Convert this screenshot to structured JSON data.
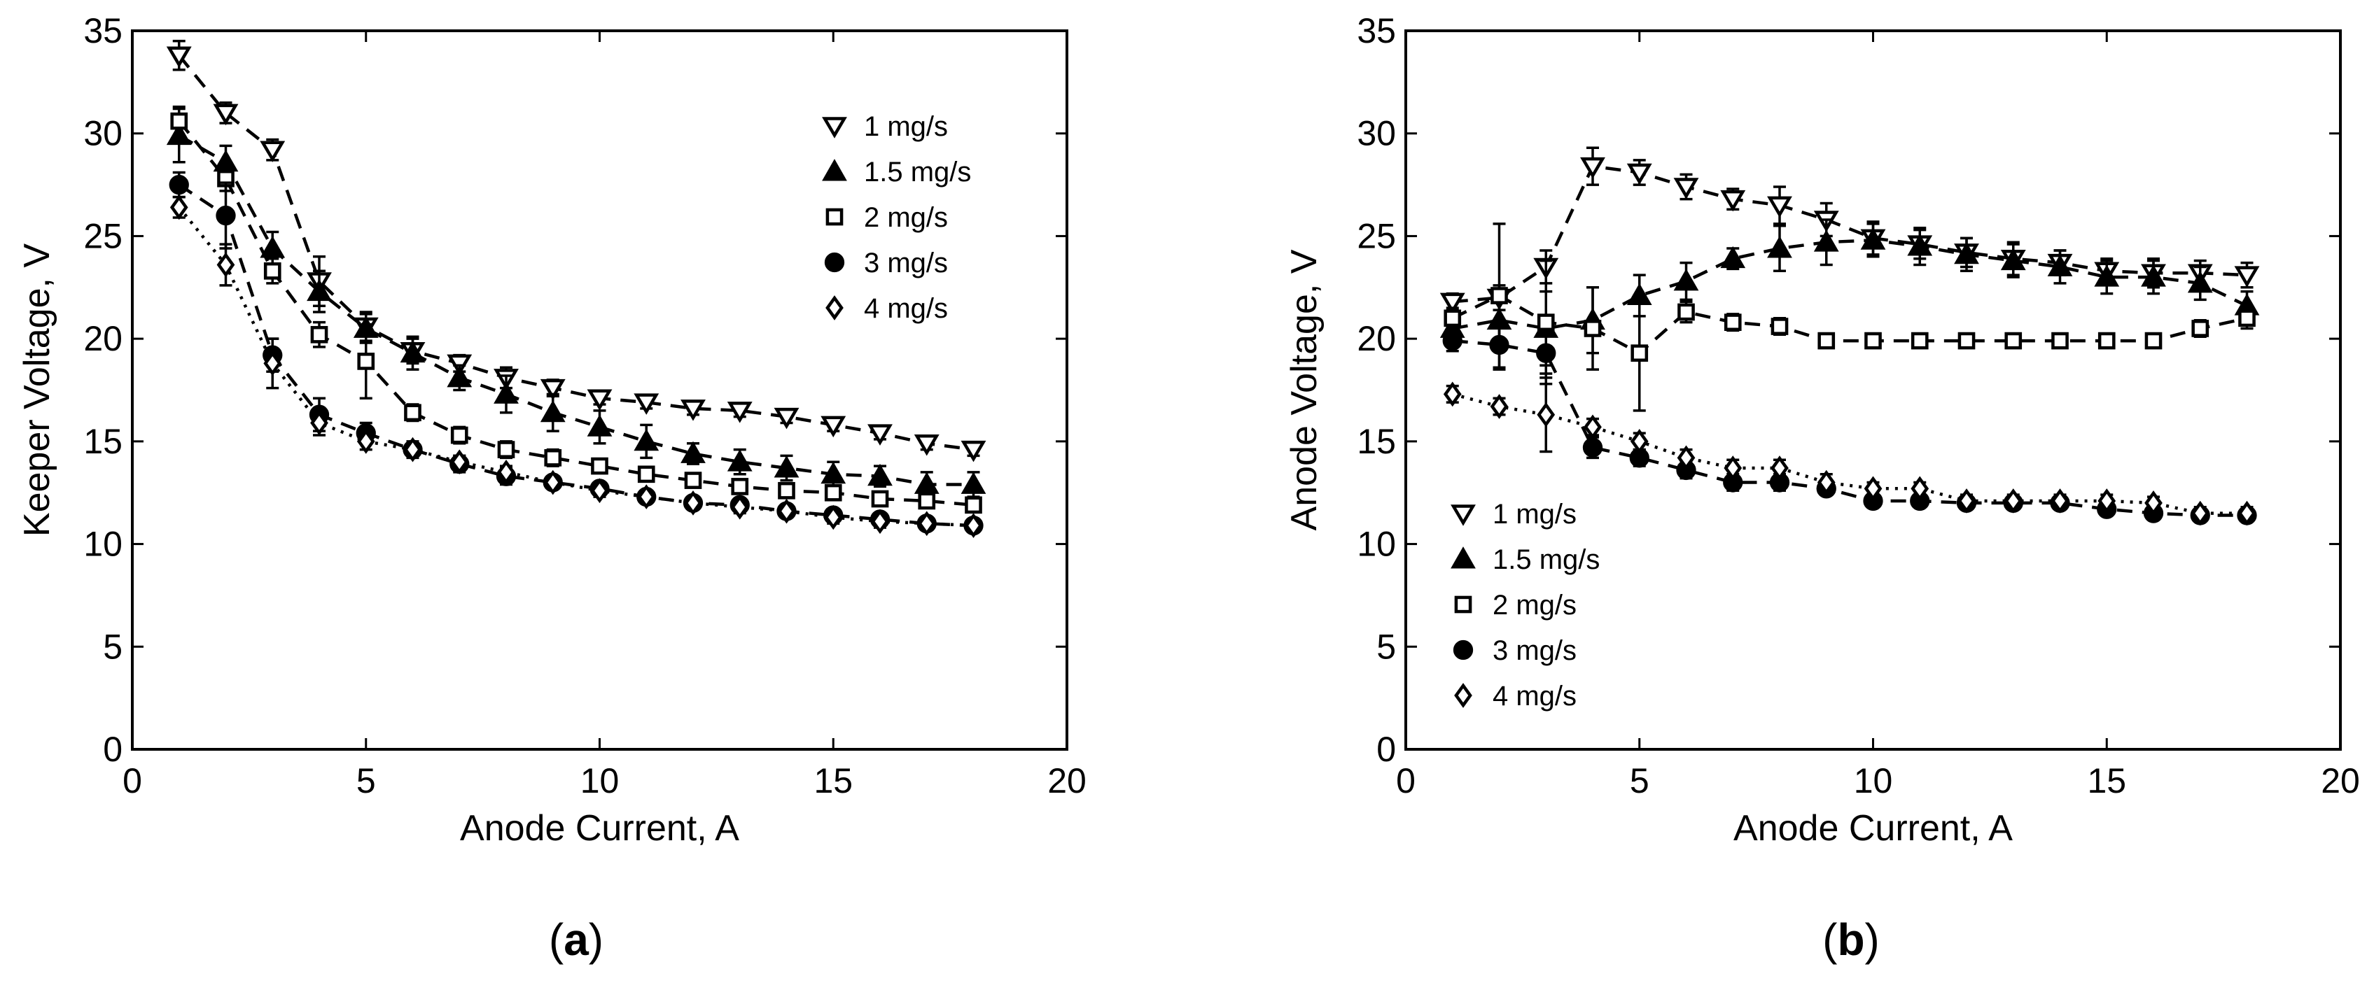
{
  "chart_data": [
    {
      "type": "line",
      "panel_label": "(a)",
      "panel_letter": "a",
      "title": "",
      "xlabel": "Anode Current, A",
      "ylabel": "Keeper Voltage, V",
      "xlim": [
        0,
        20
      ],
      "ylim": [
        0,
        35
      ],
      "xticks": [
        0,
        5,
        10,
        15,
        20
      ],
      "yticks": [
        0,
        5,
        10,
        15,
        20,
        25,
        30,
        35
      ],
      "grid": false,
      "legend_position": "top-right",
      "x": [
        1,
        2,
        3,
        4,
        5,
        6,
        7,
        8,
        9,
        10,
        11,
        12,
        13,
        14,
        15,
        16,
        17,
        18
      ],
      "series": [
        {
          "name": "1 mg/s",
          "marker": "triangle-down",
          "filled": false,
          "line": "dash",
          "values": [
            33.8,
            31.0,
            29.2,
            22.8,
            20.6,
            19.4,
            18.8,
            18.1,
            17.6,
            17.1,
            16.9,
            16.6,
            16.5,
            16.2,
            15.8,
            15.4,
            14.9,
            14.6
          ],
          "errors": [
            0.7,
            0.5,
            0.5,
            1.2,
            0.7,
            0.6,
            0.4,
            0.5,
            0.4,
            0.3,
            0.3,
            0.3,
            0.3,
            0.3,
            0.3,
            0.3,
            0.3,
            0.3
          ]
        },
        {
          "name": "1.5 mg/s",
          "marker": "triangle-up",
          "filled": true,
          "line": "dash",
          "values": [
            29.9,
            28.6,
            24.4,
            22.3,
            20.5,
            19.3,
            18.1,
            17.3,
            16.4,
            15.7,
            15.0,
            14.4,
            14.0,
            13.7,
            13.4,
            13.3,
            12.9,
            12.9
          ],
          "errors": [
            1.3,
            0.8,
            0.8,
            1.0,
            0.7,
            0.8,
            0.6,
            0.9,
            0.9,
            0.8,
            0.8,
            0.5,
            0.6,
            0.6,
            0.6,
            0.5,
            0.6,
            0.6
          ]
        },
        {
          "name": "2 mg/s",
          "marker": "square",
          "filled": false,
          "line": "dash",
          "values": [
            30.6,
            27.8,
            23.3,
            20.2,
            18.9,
            16.4,
            15.3,
            14.6,
            14.2,
            13.8,
            13.4,
            13.1,
            12.8,
            12.6,
            12.5,
            12.2,
            12.1,
            11.9
          ],
          "errors": [
            0.7,
            0.6,
            0.6,
            0.6,
            1.8,
            0.4,
            0.4,
            0.4,
            0.4,
            0.3,
            0.3,
            0.3,
            0.3,
            0.3,
            0.3,
            0.3,
            0.3,
            0.3
          ]
        },
        {
          "name": "3 mg/s",
          "marker": "circle",
          "filled": true,
          "line": "dash",
          "values": [
            27.5,
            26.0,
            19.2,
            16.3,
            15.4,
            14.6,
            13.9,
            13.3,
            13.0,
            12.7,
            12.3,
            12.0,
            11.9,
            11.6,
            11.4,
            11.2,
            11.0,
            10.9
          ],
          "errors": [
            0.6,
            1.6,
            0.8,
            0.8,
            0.5,
            0.4,
            0.4,
            0.4,
            0.3,
            0.3,
            0.3,
            0.3,
            0.3,
            0.3,
            0.3,
            0.3,
            0.3,
            0.3
          ]
        },
        {
          "name": "4 mg/s",
          "marker": "diamond",
          "filled": false,
          "line": "dot",
          "values": [
            26.4,
            23.6,
            18.8,
            15.9,
            15.0,
            14.6,
            14.0,
            13.5,
            13.0,
            12.6,
            12.3,
            12.0,
            11.8,
            11.6,
            11.3,
            11.1,
            11.0,
            10.9
          ],
          "errors": [
            0.5,
            1.0,
            1.2,
            0.6,
            0.4,
            0.3,
            0.3,
            0.3,
            0.3,
            0.3,
            0.3,
            0.3,
            0.3,
            0.3,
            0.3,
            0.3,
            0.3,
            0.3
          ]
        }
      ]
    },
    {
      "type": "line",
      "panel_label": "(b)",
      "panel_letter": "b",
      "title": "",
      "xlabel": "Anode Current, A",
      "ylabel": "Anode Voltage, V",
      "xlim": [
        0,
        20
      ],
      "ylim": [
        0,
        35
      ],
      "xticks": [
        0,
        5,
        10,
        15,
        20
      ],
      "yticks": [
        0,
        5,
        10,
        15,
        20,
        25,
        30,
        35
      ],
      "grid": false,
      "legend_position": "bottom-left",
      "x": [
        1,
        2,
        3,
        4,
        5,
        6,
        7,
        8,
        9,
        10,
        11,
        12,
        13,
        14,
        15,
        16,
        17,
        18
      ],
      "series": [
        {
          "name": "1 mg/s",
          "marker": "triangle-down",
          "filled": false,
          "line": "dash",
          "values": [
            21.8,
            22.0,
            23.5,
            28.4,
            28.1,
            27.4,
            26.8,
            26.5,
            25.8,
            24.9,
            24.6,
            24.2,
            23.9,
            23.7,
            23.3,
            23.2,
            23.2,
            23.1
          ],
          "errors": [
            0.4,
            0.6,
            0.8,
            0.9,
            0.6,
            0.6,
            0.5,
            0.9,
            0.8,
            0.8,
            0.7,
            0.7,
            0.8,
            0.6,
            0.6,
            0.7,
            0.6,
            0.6
          ]
        },
        {
          "name": "1.5 mg/s",
          "marker": "triangle-up",
          "filled": true,
          "line": "dash",
          "values": [
            20.5,
            20.9,
            20.5,
            20.9,
            22.1,
            22.8,
            23.9,
            24.4,
            24.7,
            24.8,
            24.5,
            24.1,
            23.8,
            23.5,
            23.0,
            23.0,
            22.7,
            21.6
          ],
          "errors": [
            0.6,
            1.1,
            1.8,
            1.6,
            1.0,
            0.9,
            0.5,
            1.1,
            1.1,
            0.8,
            0.9,
            0.8,
            0.8,
            0.8,
            0.8,
            0.8,
            0.8,
            0.7
          ]
        },
        {
          "name": "2 mg/s",
          "marker": "square",
          "filled": false,
          "line": "dash",
          "values": [
            21.0,
            22.1,
            20.8,
            20.5,
            19.3,
            21.3,
            20.8,
            20.6,
            19.9,
            19.9,
            19.9,
            19.9,
            19.9,
            19.9,
            19.9,
            19.9,
            20.5,
            21.0
          ],
          "errors": [
            0.5,
            3.5,
            3.0,
            2.0,
            2.8,
            0.5,
            0.4,
            0.4,
            0.3,
            0.3,
            0.3,
            0.3,
            0.3,
            0.3,
            0.3,
            0.3,
            0.4,
            0.5
          ]
        },
        {
          "name": "3 mg/s",
          "marker": "circle",
          "filled": true,
          "line": "dash",
          "values": [
            19.9,
            19.7,
            19.3,
            14.7,
            14.2,
            13.6,
            13.0,
            13.0,
            12.7,
            12.1,
            12.1,
            12.0,
            12.0,
            12.0,
            11.7,
            11.5,
            11.4,
            11.4
          ],
          "errors": [
            0.5,
            1.2,
            1.0,
            0.5,
            0.4,
            0.4,
            0.4,
            0.4,
            0.3,
            0.3,
            0.3,
            0.3,
            0.3,
            0.3,
            0.3,
            0.3,
            0.3,
            0.3
          ]
        },
        {
          "name": "4 mg/s",
          "marker": "diamond",
          "filled": false,
          "line": "dot",
          "values": [
            17.3,
            16.7,
            16.3,
            15.7,
            15.0,
            14.2,
            13.7,
            13.7,
            13.0,
            12.7,
            12.7,
            12.1,
            12.1,
            12.1,
            12.1,
            12.0,
            11.5,
            11.5
          ],
          "errors": [
            0.4,
            0.4,
            1.8,
            0.4,
            0.4,
            0.4,
            0.4,
            0.4,
            0.4,
            0.3,
            0.3,
            0.3,
            0.3,
            0.3,
            0.3,
            0.3,
            0.3,
            0.3
          ]
        }
      ]
    }
  ]
}
